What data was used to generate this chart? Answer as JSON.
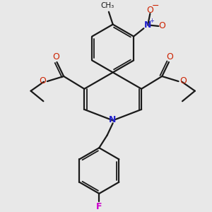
{
  "bg_color": "#e8e8e8",
  "bond_color": "#1a1a1a",
  "nitrogen_color": "#2222cc",
  "oxygen_color": "#cc2200",
  "fluorine_color": "#cc00cc",
  "line_width": 1.6,
  "figsize": [
    3.0,
    3.0
  ],
  "dpi": 100,
  "xlim": [
    -4.5,
    4.5
  ],
  "ylim": [
    -4.5,
    4.5
  ]
}
